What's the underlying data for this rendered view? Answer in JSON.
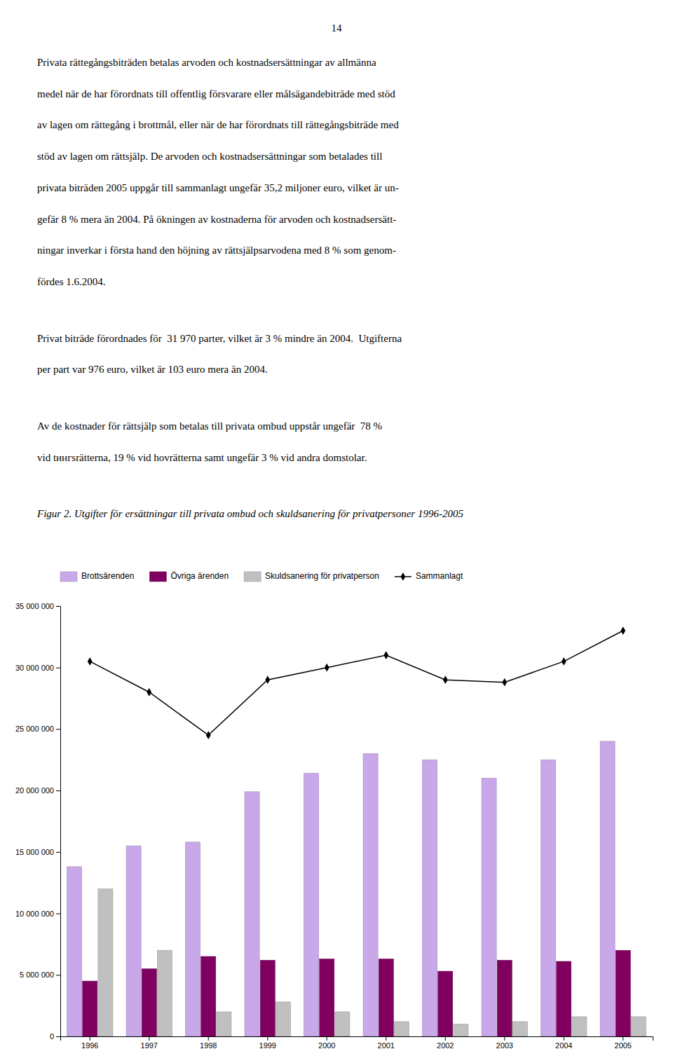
{
  "chart_data": {
    "type": "bar",
    "title": "Figur 2. Utgifter för ersättningar till privata ombud och skuldsanering för privatpersoner 1996-2005",
    "annotations": [
      [
        "14"
      ],
      [
        "Privata rättegångsbiträden betalas arvoden och kostnadsersättningar av allmänna",
        "medel när de har förordnats till offentlig försvarare eller målsägandebiträde med stöd",
        "av lagen om rättegång i brottmål, eller när de har förordnats till rättegångsbiträde med",
        "stöd av lagen om rättsjälp. De arvoden och kostnadsersättningar som betalades till",
        "privata biträden 2005 uppgår till sammanlagt ungefär 35,2 miljoner euro, vilket är un-",
        "gefär 8 % mera än 2004. På ökningen av kostnaderna för arvoden och kostnadsersätt-",
        "ningar inverkar i första hand den höjning av rättsjälpsarvodena med 8 % som genom-",
        "fördes 1.6.2004."
      ],
      [
        "Privat biträde förordnades för  31 970 parter, vilket är 3 % mindre än 2004.  Utgifterna",
        "per part var 976 euro, vilket är 103 euro mera än 2004."
      ],
      [
        "Av de kostnader för rättsjälp som betalas till privata ombud uppstår ungefär  78 %",
        "vid tингsrätterna, 19 % vid hovrätterna samt ungefär 3 % vid andra domstolar."
      ]
    ],
    "categories": [
      "1996",
      "1997",
      "1998",
      "1999",
      "2000",
      "2001",
      "2002",
      "2003",
      "2004",
      "2005"
    ],
    "series": [
      {
        "name": "Brottsärenden",
        "type": "bar",
        "color": "#C8A8E8",
        "values": [
          13800000,
          15500000,
          15800000,
          19900000,
          21400000,
          23000000,
          22500000,
          21000000,
          22500000,
          24000000
        ]
      },
      {
        "name": "Övriga ärenden",
        "type": "bar",
        "color": "#800060",
        "values": [
          4500000,
          5500000,
          6500000,
          6200000,
          6300000,
          6300000,
          5300000,
          6200000,
          6100000,
          7000000
        ]
      },
      {
        "name": "Skuldsanering för privatperson",
        "type": "bar",
        "color": "#C0C0C0",
        "values": [
          12000000,
          7000000,
          2000000,
          2800000,
          2000000,
          1200000,
          1000000,
          1200000,
          1600000,
          1600000
        ]
      },
      {
        "name": "Sammanlagt",
        "type": "line",
        "color": "#000000",
        "marker": "diamond",
        "values": [
          30500000,
          28000000,
          24500000,
          29000000,
          30000000,
          31000000,
          29000000,
          28800000,
          30500000,
          33000000
        ]
      }
    ],
    "ylim": [
      0,
      35000000
    ],
    "yticks": [
      0,
      {
        "value": 5000000,
        "label": "5 000 000"
      },
      {
        "value": 10000000,
        "label": "10 000 000"
      },
      {
        "value": 15000000,
        "label": "15 000 000"
      },
      {
        "value": 20000000,
        "label": "20 000 000"
      },
      {
        "value": 25000000,
        "label": "25 000 000"
      },
      {
        "value": 30000000,
        "label": "30 000 000"
      },
      {
        "value": 35000000,
        "label": "35 000 000"
      }
    ],
    "legend": "top",
    "grid": false
  }
}
